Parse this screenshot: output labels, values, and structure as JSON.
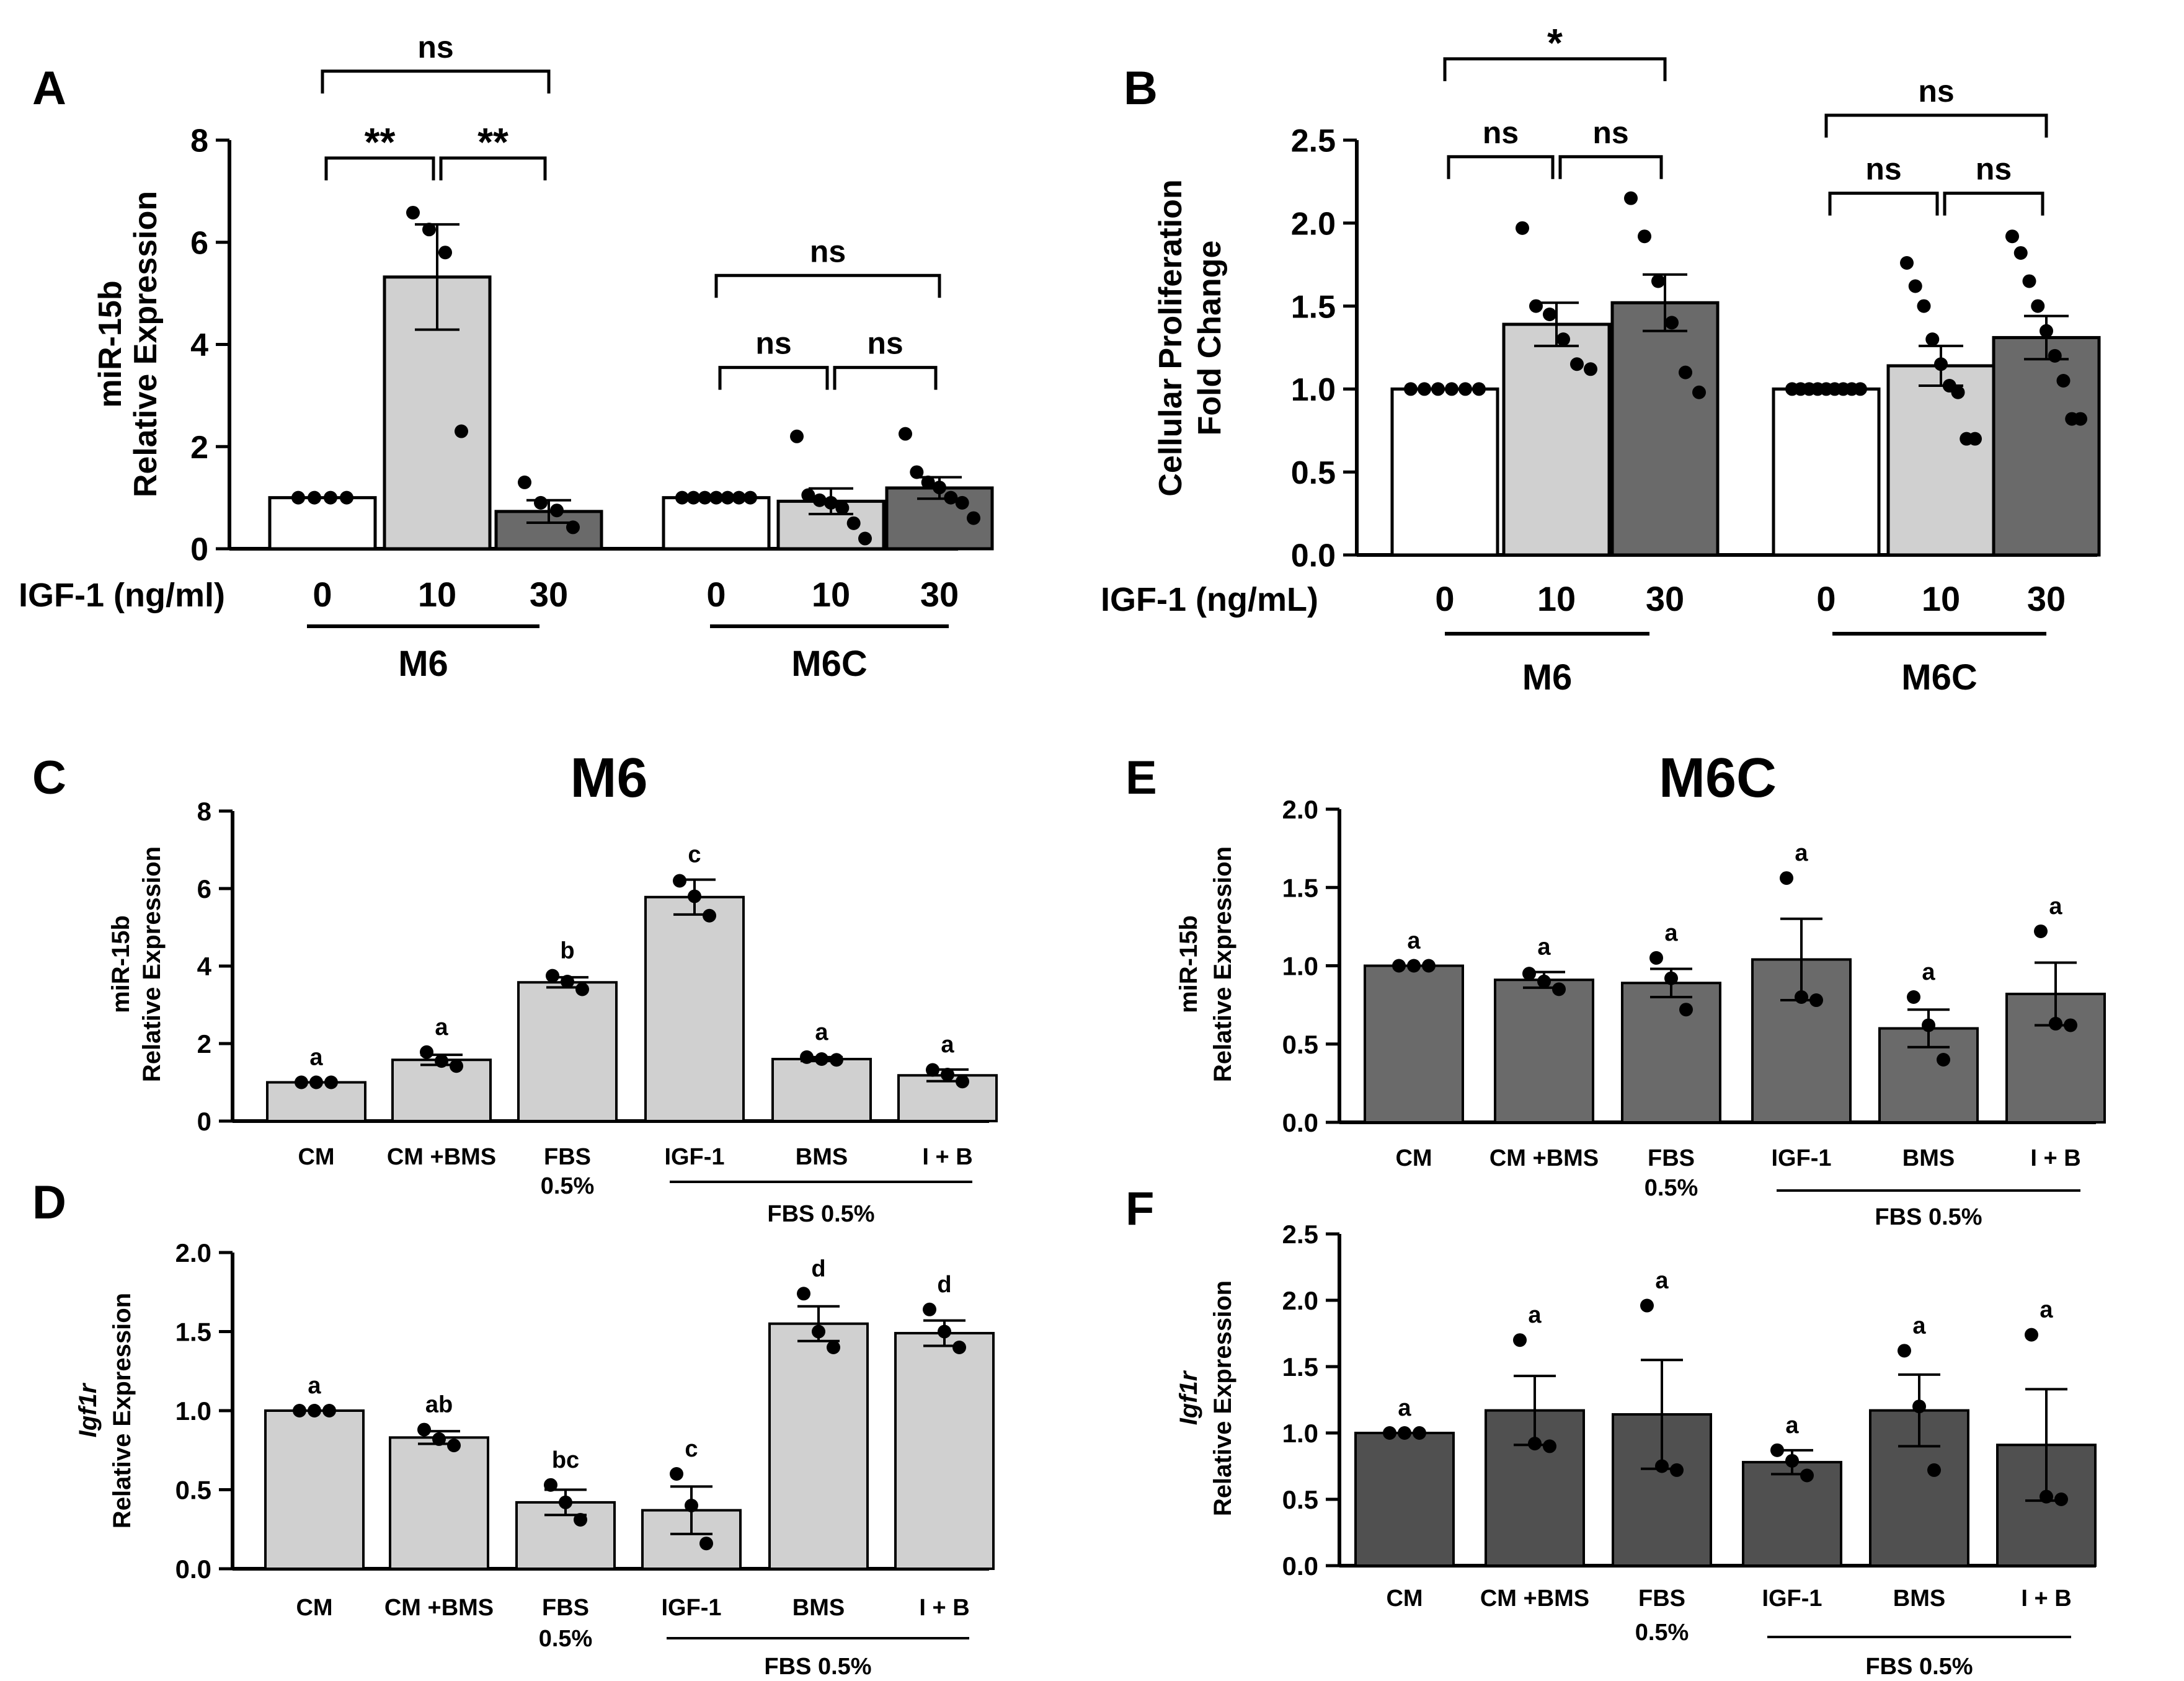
{
  "colors": {
    "white": "#ffffff",
    "light": "#d0d0d0",
    "dark": "#6a6a6a",
    "darker": "#505050",
    "ink": "#000000"
  },
  "chart_data": [
    {
      "id": "A",
      "type": "bar",
      "panel_letter": "A",
      "title": "",
      "ylabel_lines": [
        "miR-15b",
        "Relative Expression"
      ],
      "ylim": [
        0,
        8
      ],
      "yticks": [
        0,
        2,
        4,
        6,
        8
      ],
      "x_title": "IGF-1 (ng/ml)",
      "bars": [
        {
          "label": "0",
          "value": 1.0,
          "err": 0,
          "fill": "white",
          "points": [
            1.0,
            1.0,
            1.0,
            1.0
          ]
        },
        {
          "label": "10",
          "value": 5.32,
          "err": 1.03,
          "fill": "light",
          "points": [
            6.58,
            6.25,
            5.8,
            2.3
          ]
        },
        {
          "label": "30",
          "value": 0.73,
          "err": 0.22,
          "fill": "dark",
          "points": [
            1.3,
            0.9,
            0.75,
            0.42
          ]
        },
        {
          "label": "0",
          "value": 1.0,
          "err": 0,
          "fill": "white",
          "points": [
            1.0,
            1.0,
            1.0,
            1.0,
            1.0,
            1.0,
            1.0
          ]
        },
        {
          "label": "10",
          "value": 0.93,
          "err": 0.25,
          "fill": "light",
          "points": [
            2.2,
            1.05,
            0.95,
            0.9,
            0.8,
            0.5,
            0.2
          ]
        },
        {
          "label": "30",
          "value": 1.19,
          "err": 0.21,
          "fill": "dark",
          "points": [
            2.25,
            1.5,
            1.3,
            1.2,
            1.0,
            0.9,
            0.6
          ]
        }
      ],
      "groups": [
        {
          "name": "M6",
          "bars": [
            0,
            1,
            2
          ]
        },
        {
          "name": "M6C",
          "bars": [
            3,
            4,
            5
          ]
        }
      ],
      "comparisons": [
        {
          "from": 0,
          "to": 1,
          "label": "**",
          "y": 7.65
        },
        {
          "from": 1,
          "to": 2,
          "label": "**",
          "y": 7.65
        },
        {
          "from": 0,
          "to": 2,
          "label": "ns",
          "y": 9.35
        },
        {
          "from": 3,
          "to": 4,
          "label": "ns",
          "y": 3.55
        },
        {
          "from": 4,
          "to": 5,
          "label": "ns",
          "y": 3.55
        },
        {
          "from": 3,
          "to": 5,
          "label": "ns",
          "y": 5.35
        }
      ]
    },
    {
      "id": "B",
      "type": "bar",
      "panel_letter": "B",
      "title": "",
      "ylabel_lines": [
        "Cellular Proliferation",
        "Fold Change"
      ],
      "ylim": [
        0,
        2.5
      ],
      "yticks": [
        "0.0",
        "0.5",
        "1.0",
        "1.5",
        "2.0",
        "2.5"
      ],
      "x_title": "IGF-1 (ng/mL)",
      "bars": [
        {
          "label": "0",
          "value": 1.0,
          "err": 0,
          "fill": "white",
          "points": [
            1.0,
            1.0,
            1.0,
            1.0,
            1.0,
            1.0
          ]
        },
        {
          "label": "10",
          "value": 1.39,
          "err": 0.13,
          "fill": "light",
          "points": [
            1.97,
            1.5,
            1.45,
            1.3,
            1.15,
            1.12
          ]
        },
        {
          "label": "30",
          "value": 1.52,
          "err": 0.17,
          "fill": "dark",
          "points": [
            2.15,
            1.92,
            1.65,
            1.4,
            1.1,
            0.98
          ]
        },
        {
          "label": "0",
          "value": 1.0,
          "err": 0,
          "fill": "white",
          "points": [
            1.0,
            1.0,
            1.0,
            1.0,
            1.0,
            1.0,
            1.0,
            1.0,
            1.0
          ]
        },
        {
          "label": "10",
          "value": 1.14,
          "err": 0.12,
          "fill": "light",
          "points": [
            1.76,
            1.62,
            1.5,
            1.3,
            1.15,
            1.02,
            0.98,
            0.7,
            0.7
          ]
        },
        {
          "label": "30",
          "value": 1.31,
          "err": 0.13,
          "fill": "dark",
          "points": [
            1.92,
            1.82,
            1.65,
            1.5,
            1.35,
            1.2,
            1.05,
            0.82,
            0.82
          ]
        }
      ],
      "groups": [
        {
          "name": "M6",
          "bars": [
            0,
            1,
            2
          ]
        },
        {
          "name": "M6C",
          "bars": [
            3,
            4,
            5
          ]
        }
      ],
      "comparisons": [
        {
          "from": 0,
          "to": 1,
          "label": "ns",
          "y": 2.4
        },
        {
          "from": 1,
          "to": 2,
          "label": "ns",
          "y": 2.4
        },
        {
          "from": 0,
          "to": 2,
          "label": "*",
          "y": 2.99
        },
        {
          "from": 3,
          "to": 4,
          "label": "ns",
          "y": 2.18
        },
        {
          "from": 4,
          "to": 5,
          "label": "ns",
          "y": 2.18
        },
        {
          "from": 3,
          "to": 5,
          "label": "ns",
          "y": 2.65
        }
      ]
    },
    {
      "id": "C",
      "type": "bar",
      "panel_letter": "C",
      "title": "M6",
      "ylabel_lines": [
        "miR-15b",
        "Relative Expression"
      ],
      "ylim": [
        0,
        8
      ],
      "yticks": [
        0,
        2,
        4,
        6,
        8
      ],
      "bar_fill": "light",
      "categories": [
        [
          "CM"
        ],
        [
          "CM +BMS"
        ],
        [
          "FBS",
          "0.5%"
        ],
        [
          "IGF-1"
        ],
        [
          "BMS"
        ],
        [
          "I + B"
        ]
      ],
      "values": [
        1.0,
        1.58,
        3.58,
        5.78,
        1.6,
        1.18
      ],
      "errors": [
        0.0,
        0.13,
        0.13,
        0.45,
        0.05,
        0.15
      ],
      "letters": [
        "a",
        "a",
        "b",
        "c",
        "a",
        "a"
      ],
      "points": [
        [
          1.0,
          1.0,
          1.0
        ],
        [
          1.78,
          1.55,
          1.42
        ],
        [
          3.75,
          3.6,
          3.4
        ],
        [
          6.2,
          5.8,
          5.3
        ],
        [
          1.65,
          1.6,
          1.58
        ],
        [
          1.32,
          1.2,
          1.02
        ]
      ],
      "bracket_label": "FBS 0.5%",
      "bracket_from": 3,
      "bracket_to": 5
    },
    {
      "id": "D",
      "type": "bar",
      "panel_letter": "D",
      "title": "",
      "ylabel_lines": [
        "Igf1r",
        "Relative Expression"
      ],
      "ylabel_italic_first": true,
      "ylim": [
        0,
        2.0
      ],
      "yticks": [
        "0.0",
        "0.5",
        "1.0",
        "1.5",
        "2.0"
      ],
      "bar_fill": "light",
      "categories": [
        [
          "CM"
        ],
        [
          "CM +BMS"
        ],
        [
          "FBS",
          "0.5%"
        ],
        [
          "IGF-1"
        ],
        [
          "BMS"
        ],
        [
          "I + B"
        ]
      ],
      "values": [
        1.0,
        0.83,
        0.42,
        0.37,
        1.55,
        1.49
      ],
      "errors": [
        0.0,
        0.04,
        0.08,
        0.15,
        0.11,
        0.08
      ],
      "letters": [
        "a",
        "ab",
        "bc",
        "c",
        "d",
        "d"
      ],
      "points": [
        [
          1.0,
          1.0,
          1.0
        ],
        [
          0.88,
          0.82,
          0.78
        ],
        [
          0.53,
          0.42,
          0.31
        ],
        [
          0.6,
          0.4,
          0.16
        ],
        [
          1.74,
          1.5,
          1.4
        ],
        [
          1.64,
          1.5,
          1.4
        ]
      ],
      "bracket_label": "FBS 0.5%",
      "bracket_from": 3,
      "bracket_to": 5
    },
    {
      "id": "E",
      "type": "bar",
      "panel_letter": "E",
      "title": "M6C",
      "ylabel_lines": [
        "miR-15b",
        "Relative Expression"
      ],
      "ylim": [
        0,
        2.0
      ],
      "yticks": [
        "0.0",
        "0.5",
        "1.0",
        "1.5",
        "2.0"
      ],
      "bar_fill": "dark",
      "categories": [
        [
          "CM"
        ],
        [
          "CM +BMS"
        ],
        [
          "FBS",
          "0.5%"
        ],
        [
          "IGF-1"
        ],
        [
          "BMS"
        ],
        [
          "I + B"
        ]
      ],
      "values": [
        1.0,
        0.91,
        0.89,
        1.04,
        0.6,
        0.82
      ],
      "errors": [
        0.0,
        0.05,
        0.09,
        0.26,
        0.12,
        0.2
      ],
      "letters": [
        "a",
        "a",
        "a",
        "a",
        "a",
        "a"
      ],
      "points": [
        [
          1.0,
          1.0,
          1.0
        ],
        [
          0.95,
          0.9,
          0.85
        ],
        [
          1.05,
          0.92,
          0.72
        ],
        [
          1.56,
          0.8,
          0.78
        ],
        [
          0.8,
          0.62,
          0.4
        ],
        [
          1.22,
          0.63,
          0.62
        ]
      ],
      "bracket_label": "FBS 0.5%",
      "bracket_from": 3,
      "bracket_to": 5
    },
    {
      "id": "F",
      "type": "bar",
      "panel_letter": "F",
      "title": "",
      "ylabel_lines": [
        "Igf1r",
        "Relative Expression"
      ],
      "ylabel_italic_first": true,
      "ylim": [
        0,
        2.5
      ],
      "yticks": [
        "0.0",
        "0.5",
        "1.0",
        "1.5",
        "2.0",
        "2.5"
      ],
      "bar_fill": "darker",
      "categories": [
        [
          "CM"
        ],
        [
          "CM +BMS"
        ],
        [
          "FBS",
          "0.5%"
        ],
        [
          "IGF-1"
        ],
        [
          "BMS"
        ],
        [
          "I + B"
        ]
      ],
      "values": [
        1.0,
        1.17,
        1.14,
        0.78,
        1.17,
        0.91
      ],
      "errors": [
        0.0,
        0.26,
        0.41,
        0.09,
        0.27,
        0.42
      ],
      "letters": [
        "a",
        "a",
        "a",
        "a",
        "a",
        "a"
      ],
      "points": [
        [
          1.0,
          1.0,
          1.0
        ],
        [
          1.7,
          0.92,
          0.9
        ],
        [
          1.96,
          0.75,
          0.72
        ],
        [
          0.87,
          0.79,
          0.68
        ],
        [
          1.62,
          1.2,
          0.72
        ],
        [
          1.74,
          0.52,
          0.5
        ]
      ],
      "bracket_label": "FBS 0.5%",
      "bracket_from": 3,
      "bracket_to": 5
    }
  ]
}
